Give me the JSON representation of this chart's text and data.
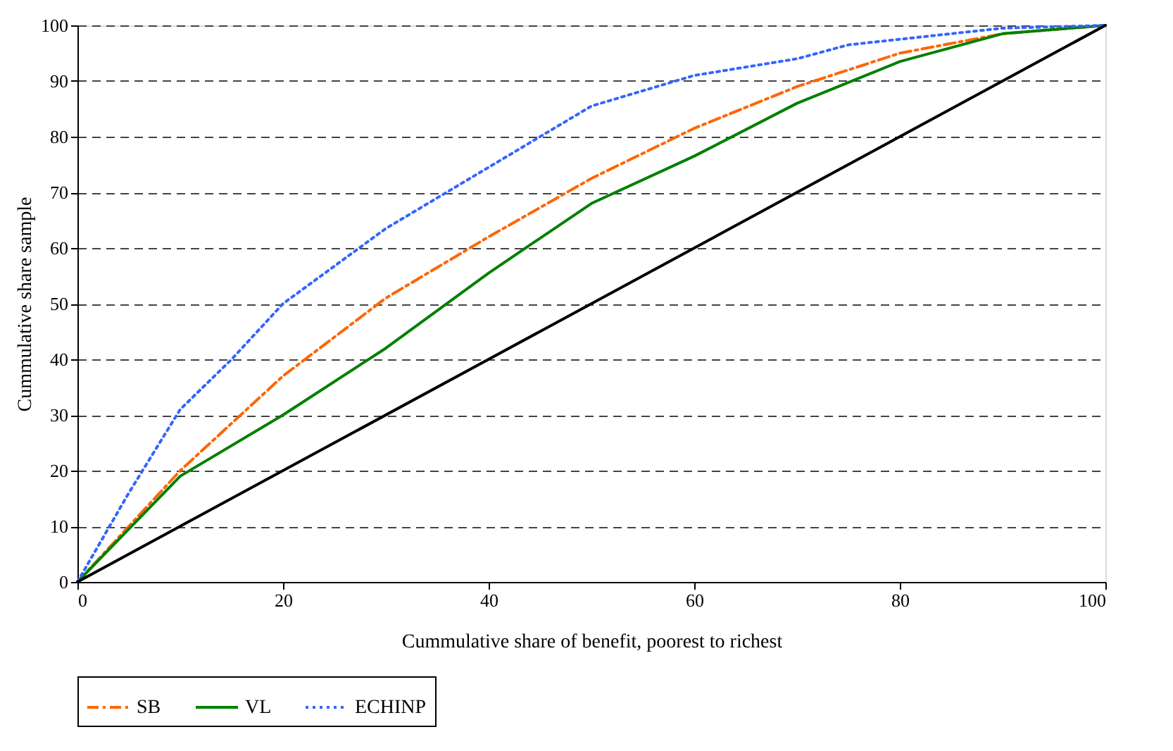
{
  "chart_data": {
    "type": "line",
    "xlabel": "Cummulative share of benefit, poorest to richest",
    "ylabel": "Cummulative share sample",
    "xlim": [
      0,
      100
    ],
    "xticks": [
      0,
      20,
      40,
      60,
      80,
      100
    ],
    "ylim": [
      0,
      100
    ],
    "yticks": [
      0,
      10,
      20,
      30,
      40,
      50,
      60,
      70,
      80,
      90,
      100
    ],
    "grid": "y",
    "legend": "bottom",
    "marker": "none",
    "series": [
      {
        "name": "SB",
        "color": "#ff6600",
        "line_style": "dashed",
        "x": [
          0,
          10,
          20,
          30,
          40,
          50,
          60,
          70,
          80,
          90,
          100
        ],
        "values": [
          0,
          20,
          37,
          51,
          62,
          72.5,
          81.5,
          89,
          95,
          98.5,
          100
        ]
      },
      {
        "name": "VL",
        "color": "#008000",
        "line_style": "solid",
        "x": [
          0,
          10,
          20,
          30,
          40,
          50,
          60,
          70,
          80,
          90,
          100
        ],
        "values": [
          0,
          19,
          30,
          42,
          55.5,
          68,
          76.5,
          86,
          93.5,
          98.5,
          100
        ]
      },
      {
        "name": "ECHINP",
        "color": "#3366ff",
        "line_style": "dotted",
        "x": [
          0,
          5,
          10,
          15,
          20,
          30,
          40,
          50,
          60,
          70,
          75,
          80,
          90,
          100
        ],
        "values": [
          0,
          16,
          31,
          40,
          50,
          63.5,
          74.5,
          85.5,
          91,
          94,
          96.5,
          97.5,
          99.5,
          100
        ]
      },
      {
        "color": "#000000",
        "line_style": "solid",
        "x": [
          0,
          100
        ],
        "values": [
          0,
          100
        ]
      }
    ]
  }
}
